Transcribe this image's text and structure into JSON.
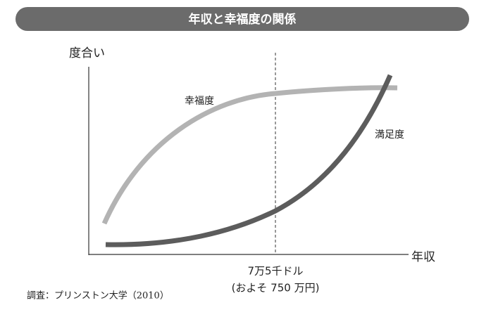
{
  "title": "年収と幸福度の関係",
  "y_axis_label": "度合い",
  "x_axis_label": "年収",
  "curves": [
    {
      "label": "幸福度"
    },
    {
      "label": "満足度"
    }
  ],
  "threshold": {
    "label": "7万5千ドル",
    "sublabel": "(およそ 750 万円)"
  },
  "source": "調査：プリンストン大学（2010）"
}
